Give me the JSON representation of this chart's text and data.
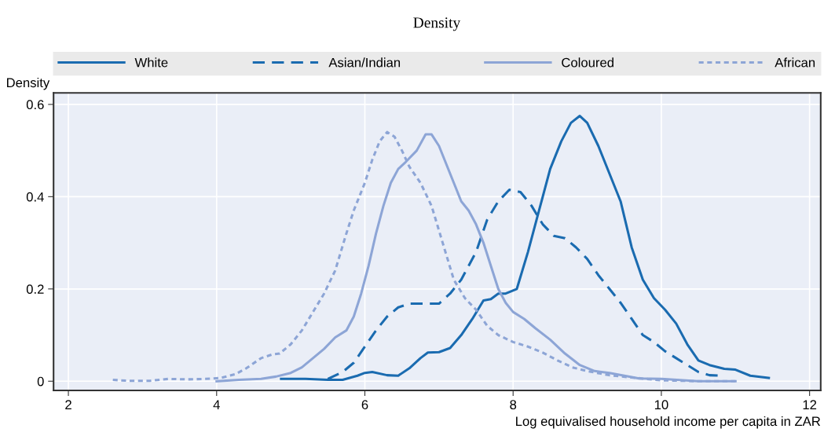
{
  "chart_data": {
    "type": "line",
    "title": "Density",
    "xlabel": "Log equivalised household income per capita in ZAR",
    "ylabel": "Density",
    "xlim": [
      1.8,
      12.15
    ],
    "ylim": [
      -0.02,
      0.625
    ],
    "xticks": [
      2,
      4,
      6,
      8,
      10,
      12
    ],
    "yticks": [
      0,
      0.2,
      0.4,
      0.6
    ],
    "grid": true,
    "legend": "top",
    "marker": "none",
    "series": [
      {
        "name": "White",
        "color": "#1a6bb0",
        "line_style": "solid",
        "x": [
          4.87,
          5.2,
          5.5,
          5.7,
          5.9,
          6.0,
          6.1,
          6.3,
          6.45,
          6.6,
          6.75,
          6.85,
          7.0,
          7.15,
          7.3,
          7.45,
          7.6,
          7.7,
          7.8,
          7.9,
          8.05,
          8.2,
          8.35,
          8.5,
          8.65,
          8.78,
          8.9,
          9.0,
          9.15,
          9.3,
          9.45,
          9.6,
          9.75,
          9.9,
          10.05,
          10.2,
          10.35,
          10.5,
          10.65,
          10.85,
          11.0,
          11.2,
          11.45
        ],
        "values": [
          0.005,
          0.005,
          0.003,
          0.003,
          0.012,
          0.018,
          0.02,
          0.013,
          0.012,
          0.028,
          0.05,
          0.062,
          0.063,
          0.072,
          0.1,
          0.135,
          0.175,
          0.178,
          0.19,
          0.19,
          0.2,
          0.28,
          0.37,
          0.46,
          0.52,
          0.56,
          0.575,
          0.56,
          0.51,
          0.45,
          0.39,
          0.29,
          0.22,
          0.18,
          0.155,
          0.125,
          0.08,
          0.045,
          0.035,
          0.027,
          0.025,
          0.012,
          0.007
        ]
      },
      {
        "name": "Asian/Indian",
        "color": "#1a6bb0",
        "line_style": "dashed",
        "x": [
          5.5,
          5.7,
          5.85,
          6.0,
          6.15,
          6.3,
          6.45,
          6.6,
          6.8,
          7.0,
          7.15,
          7.3,
          7.5,
          7.65,
          7.8,
          7.95,
          8.1,
          8.25,
          8.4,
          8.55,
          8.7,
          8.85,
          9.0,
          9.15,
          9.3,
          9.45,
          9.6,
          9.75,
          9.9,
          10.05,
          10.2,
          10.35,
          10.5,
          10.65,
          10.8
        ],
        "values": [
          0.005,
          0.02,
          0.04,
          0.075,
          0.11,
          0.14,
          0.16,
          0.168,
          0.168,
          0.168,
          0.19,
          0.22,
          0.28,
          0.35,
          0.39,
          0.415,
          0.41,
          0.38,
          0.34,
          0.315,
          0.31,
          0.29,
          0.265,
          0.23,
          0.2,
          0.17,
          0.135,
          0.1,
          0.085,
          0.065,
          0.05,
          0.035,
          0.02,
          0.013,
          0.012
        ]
      },
      {
        "name": "Coloured",
        "color": "#8da5d6",
        "line_style": "solid",
        "x": [
          4.0,
          4.3,
          4.6,
          4.8,
          5.0,
          5.15,
          5.3,
          5.45,
          5.6,
          5.75,
          5.85,
          5.95,
          6.05,
          6.15,
          6.25,
          6.35,
          6.45,
          6.55,
          6.7,
          6.82,
          6.9,
          7.0,
          7.1,
          7.2,
          7.3,
          7.4,
          7.5,
          7.6,
          7.7,
          7.8,
          7.9,
          8.0,
          8.15,
          8.3,
          8.5,
          8.7,
          8.9,
          9.1,
          9.3,
          9.5,
          9.7,
          10.0,
          10.5,
          11.0
        ],
        "values": [
          0.0,
          0.003,
          0.005,
          0.01,
          0.018,
          0.03,
          0.05,
          0.07,
          0.095,
          0.11,
          0.14,
          0.19,
          0.25,
          0.32,
          0.38,
          0.43,
          0.46,
          0.475,
          0.5,
          0.535,
          0.535,
          0.51,
          0.47,
          0.43,
          0.39,
          0.37,
          0.34,
          0.3,
          0.25,
          0.2,
          0.17,
          0.15,
          0.135,
          0.115,
          0.09,
          0.06,
          0.035,
          0.022,
          0.018,
          0.012,
          0.006,
          0.005,
          0.0,
          0.0
        ]
      },
      {
        "name": "African",
        "color": "#8da5d6",
        "line_style": "dotted",
        "x": [
          2.6,
          2.8,
          3.1,
          3.35,
          3.6,
          3.85,
          4.05,
          4.25,
          4.4,
          4.6,
          4.75,
          4.85,
          5.0,
          5.15,
          5.3,
          5.45,
          5.6,
          5.75,
          5.85,
          6.0,
          6.1,
          6.2,
          6.3,
          6.4,
          6.5,
          6.6,
          6.75,
          6.9,
          7.05,
          7.2,
          7.35,
          7.5,
          7.65,
          7.8,
          8.0,
          8.2,
          8.4,
          8.6,
          8.8,
          9.0,
          9.3,
          9.6,
          10.0,
          10.5,
          11.0
        ],
        "values": [
          0.003,
          0.001,
          0.001,
          0.005,
          0.004,
          0.005,
          0.007,
          0.015,
          0.028,
          0.05,
          0.058,
          0.06,
          0.08,
          0.11,
          0.15,
          0.19,
          0.24,
          0.32,
          0.37,
          0.43,
          0.48,
          0.52,
          0.54,
          0.53,
          0.5,
          0.465,
          0.43,
          0.38,
          0.3,
          0.22,
          0.18,
          0.155,
          0.12,
          0.1,
          0.085,
          0.075,
          0.062,
          0.045,
          0.03,
          0.022,
          0.013,
          0.008,
          0.002,
          0.0,
          0.0
        ]
      }
    ]
  }
}
